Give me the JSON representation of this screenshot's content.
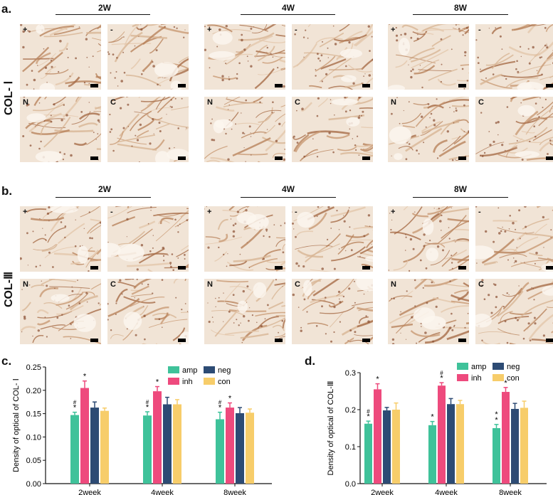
{
  "panel_a": {
    "label": "a.",
    "row_label": "COL- Ⅰ",
    "time_groups": [
      "2W",
      "4W",
      "8W"
    ],
    "tile_marks": [
      "+",
      "-",
      "N",
      "C"
    ]
  },
  "panel_b": {
    "label": "b.",
    "row_label": "COL-Ⅲ",
    "time_groups": [
      "2W",
      "4W",
      "8W"
    ],
    "tile_marks": [
      "+",
      "-",
      "N",
      "C"
    ]
  },
  "panel_c_label": "c.",
  "panel_d_label": "d.",
  "colors": {
    "amp": "#3fc29a",
    "inh": "#ee4a7d",
    "neg": "#2d4b74",
    "con": "#f7cd6a"
  },
  "chart_data": [
    {
      "type": "bar",
      "ylabel": "Density of optical of COL- Ⅰ",
      "categories": [
        "2week",
        "4week",
        "8week"
      ],
      "ylim": [
        0,
        0.25
      ],
      "yticks": [
        "0.00",
        "0.05",
        "0.10",
        "0.15",
        "0.20",
        "0.25"
      ],
      "ytick_values": [
        0,
        0.05,
        0.1,
        0.15,
        0.2,
        0.25
      ],
      "legend": [
        "amp",
        "neg",
        "inh",
        "con"
      ],
      "series": [
        {
          "name": "amp",
          "values": [
            0.147,
            0.146,
            0.138
          ],
          "errors": [
            0.006,
            0.008,
            0.015
          ]
        },
        {
          "name": "inh",
          "values": [
            0.205,
            0.198,
            0.163
          ],
          "errors": [
            0.015,
            0.01,
            0.01
          ]
        },
        {
          "name": "neg",
          "values": [
            0.163,
            0.17,
            0.151
          ],
          "errors": [
            0.012,
            0.015,
            0.012
          ]
        },
        {
          "name": "con",
          "values": [
            0.156,
            0.17,
            0.152
          ],
          "errors": [
            0.006,
            0.01,
            0.008
          ]
        }
      ],
      "annotations": [
        {
          "series": "amp",
          "category": "2week",
          "text": "#\n*"
        },
        {
          "series": "inh",
          "category": "2week",
          "text": "*"
        },
        {
          "series": "amp",
          "category": "4week",
          "text": "#\n*"
        },
        {
          "series": "inh",
          "category": "4week",
          "text": "*"
        },
        {
          "series": "amp",
          "category": "8week",
          "text": "#\n*"
        },
        {
          "series": "inh",
          "category": "8week",
          "text": "*"
        }
      ]
    },
    {
      "type": "bar",
      "ylabel": "Density of optical of COL-Ⅲ",
      "categories": [
        "2week",
        "4week",
        "8week"
      ],
      "ylim": [
        0,
        0.3
      ],
      "yticks": [
        "0.0",
        "0.1",
        "0.2",
        "0.3"
      ],
      "ytick_values": [
        0,
        0.1,
        0.2,
        0.3
      ],
      "legend": [
        "amp",
        "neg",
        "inh",
        "con"
      ],
      "series": [
        {
          "name": "amp",
          "values": [
            0.162,
            0.158,
            0.15
          ],
          "errors": [
            0.007,
            0.01,
            0.01
          ]
        },
        {
          "name": "inh",
          "values": [
            0.255,
            0.265,
            0.248
          ],
          "errors": [
            0.015,
            0.008,
            0.012
          ]
        },
        {
          "name": "neg",
          "values": [
            0.198,
            0.215,
            0.202
          ],
          "errors": [
            0.008,
            0.015,
            0.015
          ]
        },
        {
          "name": "con",
          "values": [
            0.2,
            0.215,
            0.205
          ],
          "errors": [
            0.018,
            0.01,
            0.018
          ]
        }
      ],
      "annotations": [
        {
          "series": "amp",
          "category": "2week",
          "text": "#\n*"
        },
        {
          "series": "inh",
          "category": "2week",
          "text": "*"
        },
        {
          "series": "amp",
          "category": "4week",
          "text": "*"
        },
        {
          "series": "inh",
          "category": "4week",
          "text": "#\n*"
        },
        {
          "series": "amp",
          "category": "8week",
          "text": "*\n*"
        },
        {
          "series": "inh",
          "category": "8week",
          "text": "*"
        }
      ]
    }
  ]
}
